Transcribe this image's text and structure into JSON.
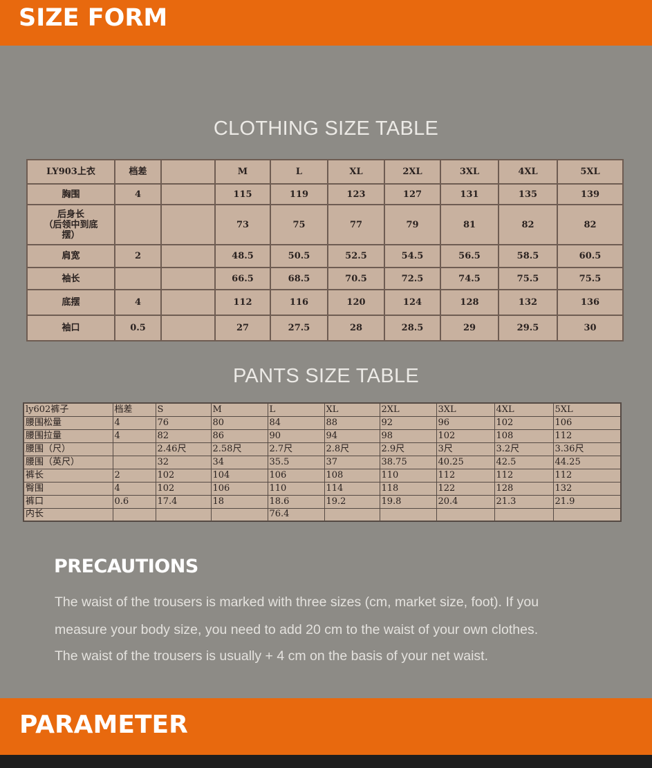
{
  "header": {
    "title": "SIZE FORM"
  },
  "clothing": {
    "title": "CLOTHING SIZE TABLE",
    "rows": [
      [
        "LY903上衣",
        "档差",
        "",
        "M",
        "L",
        "XL",
        "2XL",
        "3XL",
        "4XL",
        "5XL"
      ],
      [
        "胸围",
        "4",
        "",
        "115",
        "119",
        "123",
        "127",
        "131",
        "135",
        "139"
      ],
      [
        "后身长\n（后领中到底\n摆）",
        "",
        "",
        "73",
        "75",
        "77",
        "79",
        "81",
        "82",
        "82"
      ],
      [
        "肩宽",
        "2",
        "",
        "48.5",
        "50.5",
        "52.5",
        "54.5",
        "56.5",
        "58.5",
        "60.5"
      ],
      [
        "袖长",
        "",
        "",
        "66.5",
        "68.5",
        "70.5",
        "72.5",
        "74.5",
        "75.5",
        "75.5"
      ],
      [
        "底摆",
        "4",
        "",
        "112",
        "116",
        "120",
        "124",
        "128",
        "132",
        "136"
      ],
      [
        "袖口",
        "0.5",
        "",
        "27",
        "27.5",
        "28",
        "28.5",
        "29",
        "29.5",
        "30"
      ]
    ]
  },
  "pants": {
    "title": "PANTS SIZE TABLE",
    "rows": [
      [
        "ly602裤子",
        "档差",
        "S",
        "M",
        "L",
        "XL",
        "2XL",
        "3XL",
        "4XL",
        "5XL"
      ],
      [
        "腰围松量",
        "4",
        "76",
        "80",
        "84",
        "88",
        "92",
        "96",
        "102",
        "106"
      ],
      [
        "腰围拉量",
        "4",
        "82",
        "86",
        "90",
        "94",
        "98",
        "102",
        "108",
        "112"
      ],
      [
        "腰围（尺）",
        "",
        "2.46尺",
        "2.58尺",
        "2.7尺",
        "2.8尺",
        "2.9尺",
        "3尺",
        "3.2尺",
        "3.36尺"
      ],
      [
        "腰围（英尺）",
        "",
        "32",
        "34",
        "35.5",
        "37",
        "38.75",
        "40.25",
        "42.5",
        "44.25"
      ],
      [
        "裤长",
        "2",
        "102",
        "104",
        "106",
        "108",
        "110",
        "112",
        "112",
        "112"
      ],
      [
        "臀围",
        "4",
        "102",
        "106",
        "110",
        "114",
        "118",
        "122",
        "128",
        "132"
      ],
      [
        "裤口",
        "0.6",
        "17.4",
        "18",
        "18.6",
        "19.2",
        "19.8",
        "20.4",
        "21.3",
        "21.9"
      ],
      [
        "内长",
        "",
        "",
        "",
        "76.4",
        "",
        "",
        "",
        "",
        ""
      ]
    ]
  },
  "precautions": {
    "title": "PRECAUTIONS",
    "lines": [
      "The waist of the trousers is marked with three sizes (cm, market size, foot). If you",
      "measure your body size, you need to add 20 cm to the waist of your own clothes.",
      "The waist of the trousers is usually + 4 cm on the basis of your net waist."
    ]
  },
  "footer": {
    "title": "PARAMETER"
  },
  "colors": {
    "accent": "#e8690e",
    "background": "#8d8b86",
    "table": "#c8b19f"
  }
}
